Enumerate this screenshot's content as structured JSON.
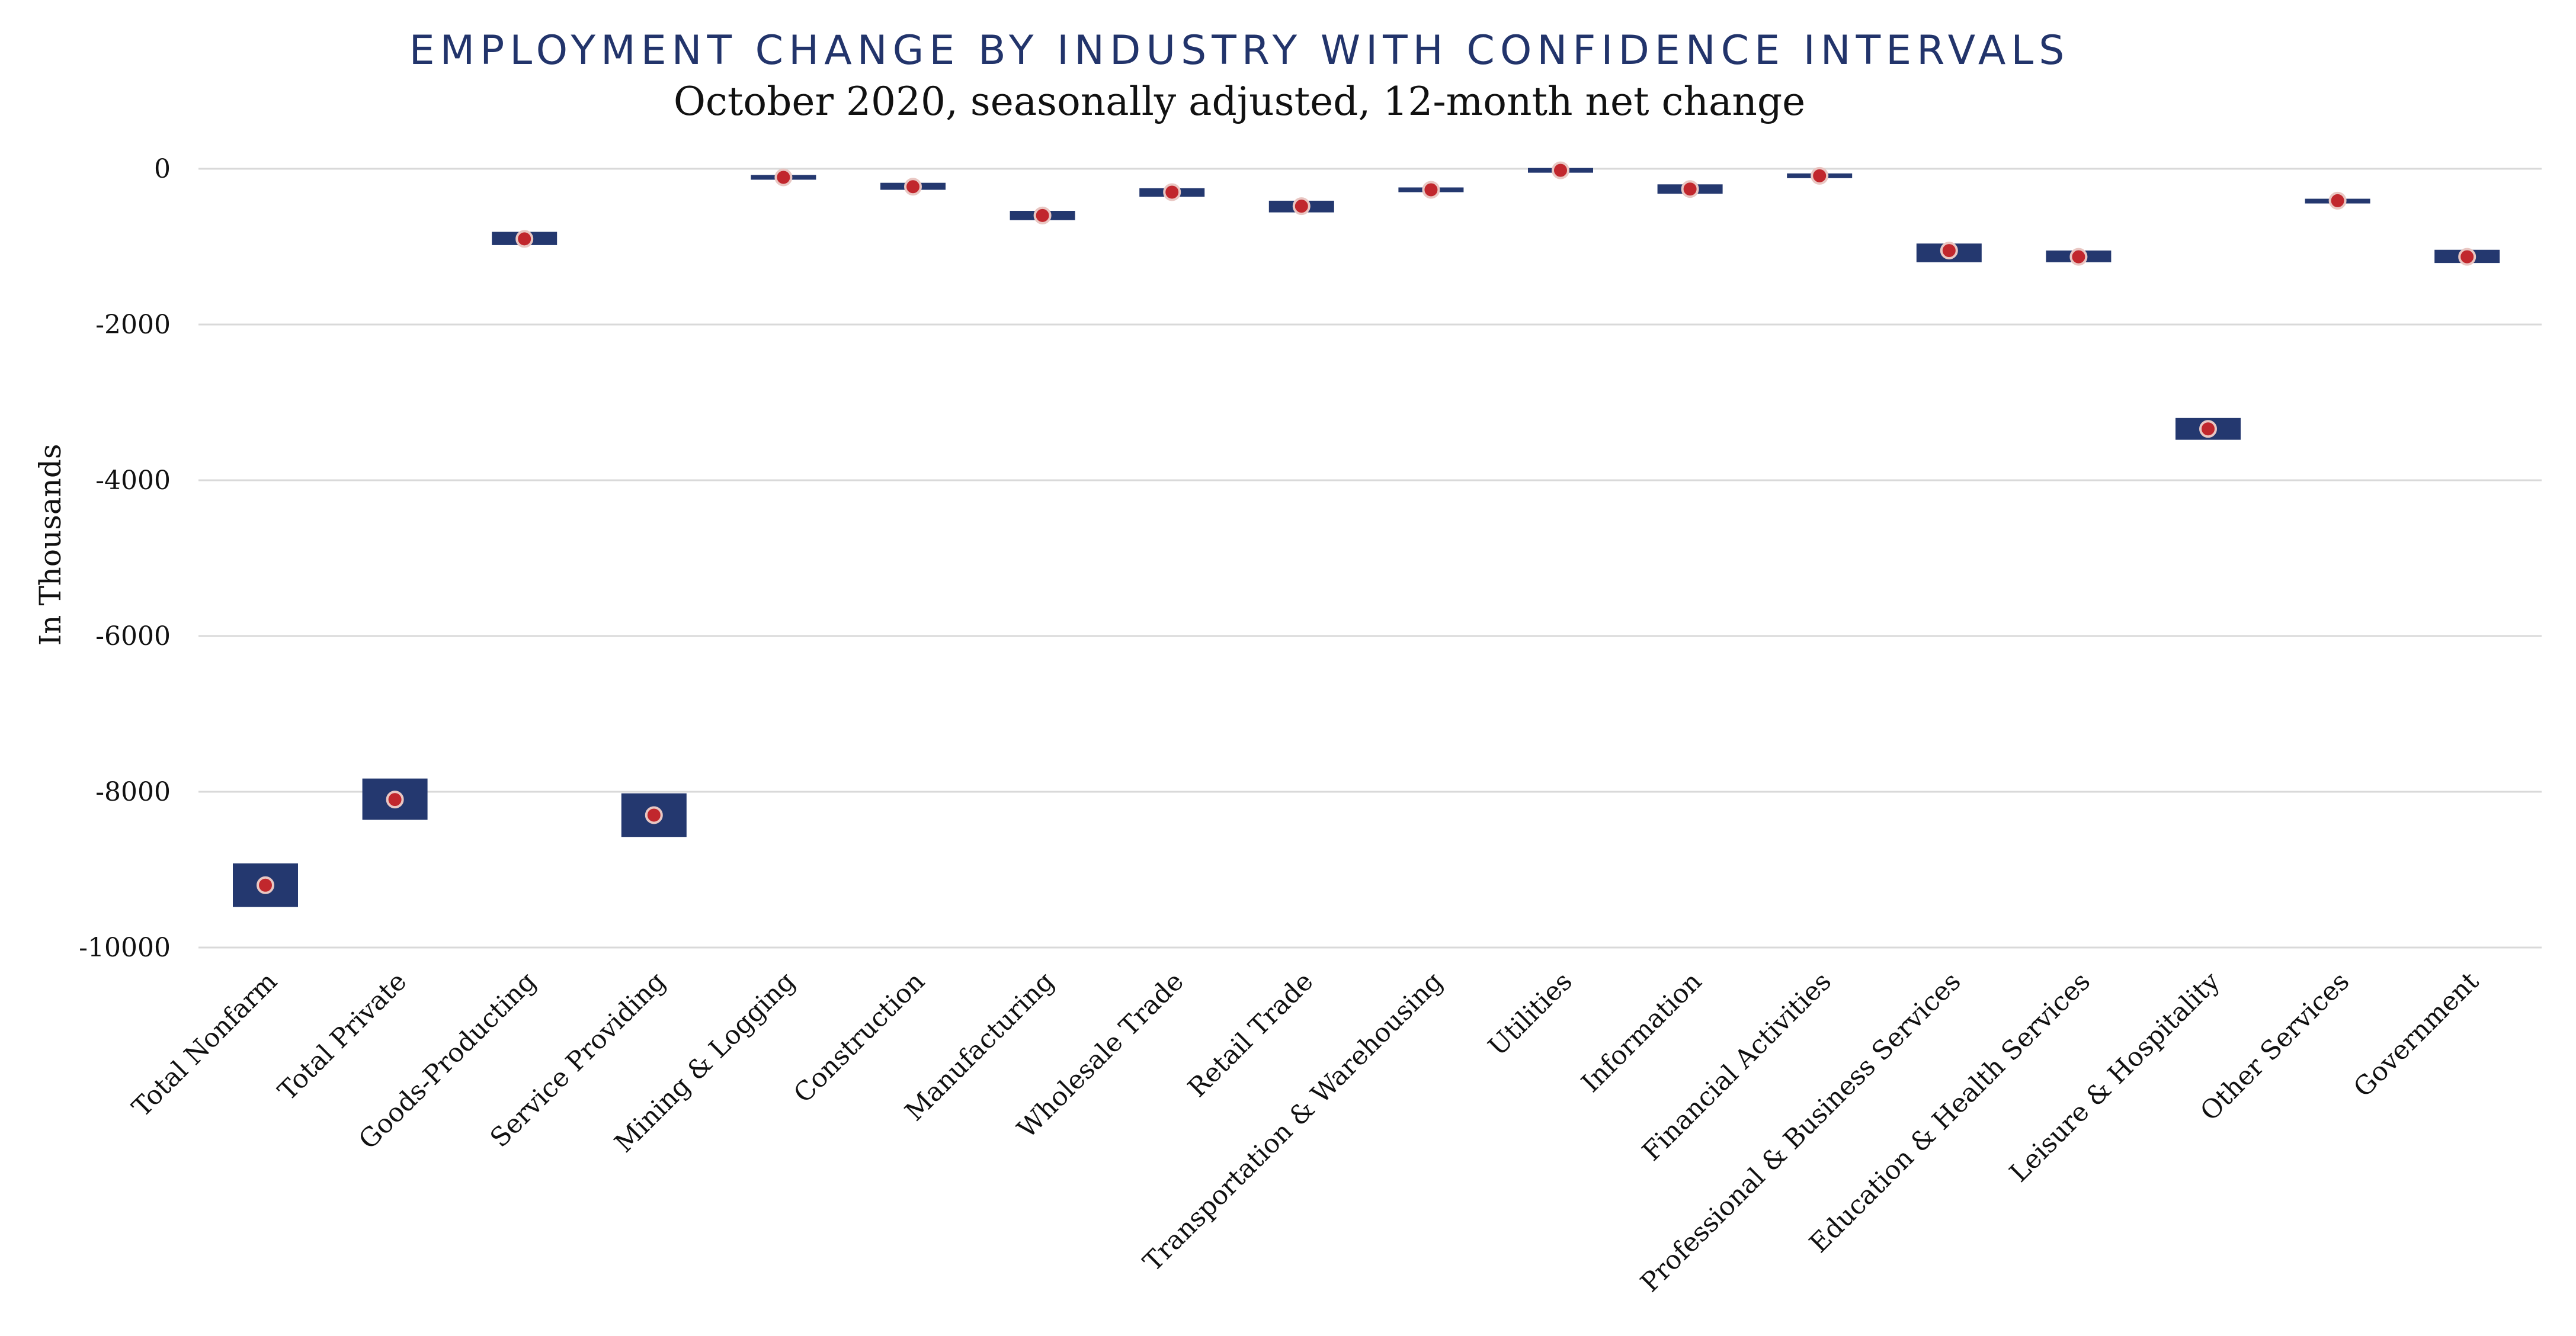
{
  "chart_data": {
    "type": "errorbar",
    "title": "EMPLOYMENT CHANGE BY INDUSTRY WITH CONFIDENCE INTERVALS",
    "subtitle": "October 2020, seasonally adjusted, 12-month net change",
    "ylabel": "In Thousands",
    "xlabel": "",
    "ylim": [
      -10500,
      150
    ],
    "yticks": [
      0,
      -2000,
      -4000,
      -6000,
      -8000,
      -10000
    ],
    "grid": true,
    "legend": "none",
    "colors": {
      "interval": "#24386f",
      "estimate": "#c1272d",
      "grid": "#d9d9d9",
      "title": "#22346b"
    },
    "categories": [
      "Total Nonfarm",
      "Total Private",
      "Goods-Producting",
      "Service Providing",
      "Mining & Logging",
      "Construction",
      "Manufacturing",
      "Wholesale Trade",
      "Retail Trade",
      "Transportation & Warehousing",
      "Utilities",
      "Information",
      "Financial Activities",
      "Professional & Business Services",
      "Education & Health Services",
      "Leisure & Hospitality",
      "Other Services",
      "Government"
    ],
    "estimate": [
      -9200,
      -8100,
      -900,
      -8300,
      -110,
      -230,
      -600,
      -300,
      -480,
      -270,
      -20,
      -260,
      -90,
      -1050,
      -1130,
      -3340,
      -410,
      -1130
    ],
    "lower": [
      -9480,
      -8360,
      -980,
      -8580,
      -140,
      -270,
      -660,
      -360,
      -560,
      -300,
      -40,
      -320,
      -120,
      -1200,
      -1200,
      -3480,
      -440,
      -1210
    ],
    "upper": [
      -8920,
      -7830,
      -810,
      -8020,
      -80,
      -180,
      -540,
      -250,
      -410,
      -240,
      0,
      -200,
      -60,
      -960,
      -1050,
      -3200,
      -390,
      -1040
    ]
  }
}
